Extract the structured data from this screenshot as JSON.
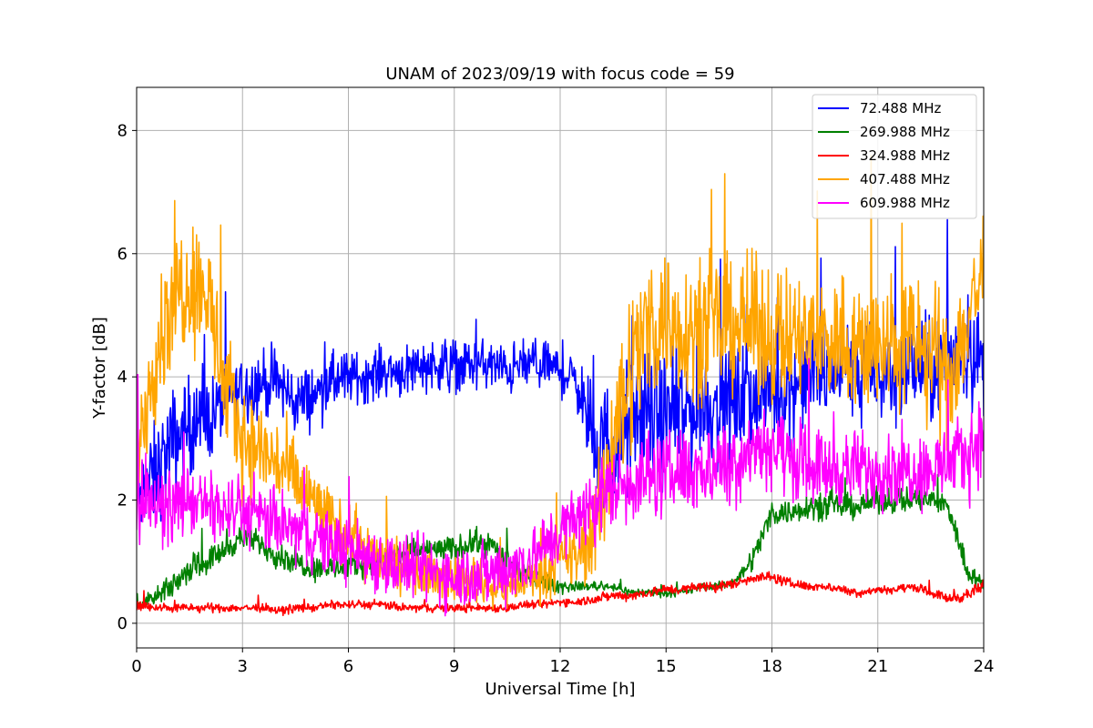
{
  "chart_data": {
    "type": "line",
    "title": "UNAM of 2023/09/19 with focus code = 59",
    "xlabel": "Universal Time [h]",
    "ylabel": "Y-factor [dB]",
    "xlim": [
      0,
      24
    ],
    "ylim": [
      -0.4,
      8.7
    ],
    "xticks": [
      0,
      3,
      6,
      9,
      12,
      15,
      18,
      21,
      24
    ],
    "xtick_labels": [
      "0",
      "3",
      "6",
      "9",
      "12",
      "15",
      "18",
      "21",
      "24"
    ],
    "yticks": [
      0,
      2,
      4,
      6,
      8
    ],
    "ytick_labels": [
      "0",
      "2",
      "4",
      "6",
      "8"
    ],
    "grid": true,
    "legend_position": "top-right",
    "series": [
      {
        "name": "72.488 MHz",
        "color": "#0000ff",
        "x": [
          0,
          0.5,
          1,
          1.5,
          2,
          2.5,
          3,
          3.5,
          4,
          4.5,
          5,
          5.5,
          6,
          6.5,
          7,
          7.5,
          8,
          8.5,
          9,
          9.5,
          10,
          10.5,
          11,
          11.5,
          12,
          12.5,
          13,
          13.5,
          14,
          14.5,
          15,
          15.5,
          16,
          16.5,
          17,
          17.5,
          18,
          18.5,
          19,
          19.5,
          20,
          20.5,
          21,
          21.5,
          22,
          22.5,
          23,
          23.5,
          24
        ],
        "y": [
          2.0,
          2.4,
          2.9,
          3.2,
          3.3,
          3.6,
          3.8,
          3.9,
          3.9,
          3.6,
          3.7,
          3.9,
          4.0,
          4.0,
          4.1,
          4.1,
          4.2,
          4.2,
          4.2,
          4.2,
          4.2,
          4.1,
          4.2,
          4.2,
          4.1,
          3.9,
          2.8,
          2.9,
          3.2,
          3.4,
          3.3,
          3.4,
          3.6,
          3.5,
          3.6,
          3.7,
          3.8,
          3.8,
          4.0,
          4.0,
          4.2,
          4.1,
          4.0,
          4.1,
          4.2,
          4.1,
          4.3,
          4.5,
          4.2
        ],
        "spread": [
          1.0,
          1.2,
          1.3,
          1.2,
          1.0,
          0.9,
          0.8,
          0.8,
          0.8,
          0.8,
          0.7,
          0.7,
          0.6,
          0.6,
          0.6,
          0.6,
          0.6,
          0.6,
          0.6,
          0.6,
          0.6,
          0.6,
          0.6,
          0.6,
          0.6,
          0.7,
          1.4,
          1.6,
          1.6,
          1.5,
          1.5,
          1.5,
          1.5,
          1.4,
          1.3,
          1.3,
          1.2,
          1.2,
          1.2,
          1.2,
          1.2,
          1.2,
          1.2,
          1.2,
          1.2,
          1.2,
          1.2,
          1.3,
          1.2
        ]
      },
      {
        "name": "269.988 MHz",
        "color": "#008000",
        "x": [
          0,
          0.5,
          1,
          1.5,
          2,
          2.5,
          3,
          3.5,
          4,
          4.5,
          5,
          5.5,
          6,
          6.5,
          7,
          7.5,
          8,
          8.5,
          9,
          9.5,
          10,
          10.5,
          11,
          11.5,
          12,
          12.5,
          13,
          13.5,
          14,
          14.5,
          15,
          15.5,
          16,
          16.5,
          17,
          17.5,
          18,
          18.5,
          19,
          19.5,
          20,
          20.5,
          21,
          21.5,
          22,
          22.5,
          23,
          23.5,
          24
        ],
        "y": [
          0.3,
          0.4,
          0.6,
          0.9,
          1.0,
          1.2,
          1.4,
          1.3,
          1.1,
          1.0,
          0.9,
          0.9,
          0.9,
          1.0,
          1.1,
          1.1,
          1.2,
          1.2,
          1.2,
          1.3,
          1.3,
          1.0,
          0.8,
          0.7,
          0.6,
          0.6,
          0.6,
          0.6,
          0.5,
          0.5,
          0.5,
          0.5,
          0.6,
          0.6,
          0.7,
          1.1,
          1.8,
          1.8,
          1.9,
          1.9,
          1.9,
          1.9,
          2.0,
          2.0,
          2.0,
          2.0,
          1.9,
          0.9,
          0.6
        ],
        "spread": [
          0.1,
          0.2,
          0.3,
          0.3,
          0.3,
          0.3,
          0.3,
          0.3,
          0.3,
          0.3,
          0.3,
          0.3,
          0.3,
          0.3,
          0.3,
          0.3,
          0.3,
          0.3,
          0.3,
          0.3,
          0.3,
          0.3,
          0.2,
          0.2,
          0.2,
          0.1,
          0.1,
          0.1,
          0.1,
          0.1,
          0.1,
          0.1,
          0.1,
          0.1,
          0.1,
          0.3,
          0.3,
          0.3,
          0.3,
          0.3,
          0.3,
          0.3,
          0.3,
          0.3,
          0.3,
          0.3,
          0.3,
          0.3,
          0.2
        ]
      },
      {
        "name": "324.988 MHz",
        "color": "#ff0000",
        "x": [
          0,
          0.5,
          1,
          1.5,
          2,
          2.5,
          3,
          3.5,
          4,
          4.5,
          5,
          5.5,
          6,
          6.5,
          7,
          7.5,
          8,
          8.5,
          9,
          9.5,
          10,
          10.5,
          11,
          11.5,
          12,
          12.5,
          13,
          13.5,
          14,
          14.5,
          15,
          15.5,
          16,
          16.5,
          17,
          17.5,
          18,
          18.5,
          19,
          19.5,
          20,
          20.5,
          21,
          21.5,
          22,
          22.5,
          23,
          23.5,
          24
        ],
        "y": [
          0.3,
          0.25,
          0.25,
          0.25,
          0.25,
          0.25,
          0.25,
          0.25,
          0.2,
          0.25,
          0.25,
          0.3,
          0.3,
          0.3,
          0.3,
          0.25,
          0.25,
          0.25,
          0.25,
          0.25,
          0.25,
          0.25,
          0.3,
          0.3,
          0.35,
          0.35,
          0.4,
          0.45,
          0.45,
          0.5,
          0.55,
          0.55,
          0.6,
          0.6,
          0.65,
          0.75,
          0.75,
          0.65,
          0.6,
          0.6,
          0.55,
          0.5,
          0.55,
          0.55,
          0.6,
          0.5,
          0.4,
          0.45,
          0.6
        ],
        "spread": [
          0.15,
          0.1,
          0.1,
          0.1,
          0.1,
          0.1,
          0.1,
          0.1,
          0.1,
          0.1,
          0.1,
          0.1,
          0.1,
          0.1,
          0.1,
          0.1,
          0.1,
          0.1,
          0.1,
          0.1,
          0.1,
          0.1,
          0.1,
          0.1,
          0.1,
          0.1,
          0.12,
          0.12,
          0.12,
          0.12,
          0.12,
          0.12,
          0.12,
          0.12,
          0.12,
          0.12,
          0.12,
          0.12,
          0.1,
          0.1,
          0.1,
          0.1,
          0.1,
          0.1,
          0.1,
          0.1,
          0.12,
          0.15,
          0.15
        ]
      },
      {
        "name": "407.488 MHz",
        "color": "#ffa500",
        "x": [
          0,
          0.5,
          1,
          1.5,
          2,
          2.5,
          3,
          3.5,
          4,
          4.5,
          5,
          5.5,
          6,
          6.5,
          7,
          7.5,
          8,
          8.5,
          9,
          9.5,
          10,
          10.5,
          11,
          11.5,
          12,
          12.5,
          13,
          13.5,
          14,
          14.5,
          15,
          15.5,
          16,
          16.5,
          17,
          17.5,
          18,
          18.5,
          19,
          19.5,
          20,
          20.5,
          21,
          21.5,
          22,
          22.5,
          23,
          23.5,
          24
        ],
        "y": [
          2.8,
          4.3,
          5.3,
          5.6,
          5.4,
          3.8,
          3.0,
          2.8,
          2.6,
          2.3,
          2.0,
          1.6,
          1.4,
          1.2,
          1.0,
          0.9,
          0.8,
          0.8,
          0.7,
          0.7,
          0.6,
          0.6,
          0.7,
          0.8,
          1.0,
          1.1,
          1.5,
          3.0,
          4.2,
          4.8,
          5.0,
          4.8,
          4.8,
          4.8,
          4.9,
          4.8,
          4.7,
          4.6,
          4.6,
          4.6,
          4.6,
          4.5,
          4.5,
          4.5,
          4.6,
          4.4,
          4.0,
          4.8,
          5.8
        ],
        "spread": [
          1.2,
          1.4,
          1.7,
          1.6,
          1.6,
          1.5,
          1.2,
          1.2,
          1.1,
          1.0,
          0.9,
          0.8,
          0.7,
          0.7,
          0.6,
          0.6,
          0.5,
          0.5,
          0.5,
          0.5,
          0.5,
          0.5,
          0.5,
          0.6,
          0.7,
          0.8,
          1.2,
          1.8,
          2.0,
          1.8,
          1.7,
          1.6,
          1.6,
          1.6,
          1.6,
          1.6,
          1.6,
          1.6,
          1.6,
          1.6,
          1.6,
          1.6,
          1.6,
          1.6,
          1.6,
          1.6,
          1.6,
          1.7,
          1.5
        ]
      },
      {
        "name": "609.988 MHz",
        "color": "#ff00ff",
        "x": [
          0,
          0.5,
          1,
          1.5,
          2,
          2.5,
          3,
          3.5,
          4,
          4.5,
          5,
          5.5,
          6,
          6.5,
          7,
          7.5,
          8,
          8.5,
          9,
          9.5,
          10,
          10.5,
          11,
          11.5,
          12,
          12.5,
          13,
          13.5,
          14,
          14.5,
          15,
          15.5,
          16,
          16.5,
          17,
          17.5,
          18,
          18.5,
          19,
          19.5,
          20,
          20.5,
          21,
          21.5,
          22,
          22.5,
          23,
          23.5,
          24
        ],
        "y": [
          2.0,
          1.9,
          1.9,
          2.0,
          1.9,
          1.8,
          1.8,
          1.7,
          1.6,
          1.5,
          1.4,
          1.3,
          1.2,
          1.1,
          1.0,
          0.9,
          0.9,
          0.8,
          0.8,
          0.8,
          0.8,
          0.9,
          1.0,
          1.2,
          1.5,
          1.7,
          2.0,
          2.2,
          2.3,
          2.4,
          2.4,
          2.5,
          2.5,
          2.6,
          2.7,
          2.9,
          2.9,
          2.7,
          2.6,
          2.5,
          2.5,
          2.5,
          2.5,
          2.5,
          2.5,
          2.5,
          2.6,
          2.7,
          3.1
        ],
        "spread": [
          1.0,
          0.8,
          0.8,
          0.8,
          0.8,
          0.8,
          0.8,
          0.8,
          0.8,
          0.8,
          0.8,
          0.8,
          0.8,
          0.8,
          0.8,
          0.8,
          0.8,
          0.8,
          0.8,
          0.8,
          0.8,
          0.8,
          0.8,
          0.8,
          0.8,
          0.8,
          0.9,
          1.0,
          1.0,
          1.0,
          1.0,
          1.0,
          1.0,
          1.0,
          1.0,
          1.0,
          1.0,
          1.0,
          0.9,
          0.9,
          0.9,
          0.9,
          0.9,
          0.9,
          0.9,
          0.9,
          0.9,
          1.0,
          1.0
        ]
      }
    ]
  }
}
